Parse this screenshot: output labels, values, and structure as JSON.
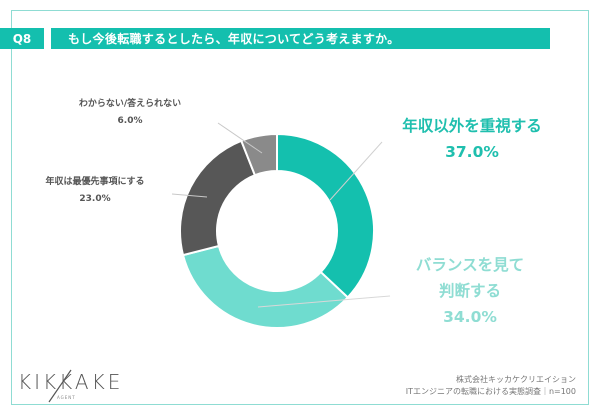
{
  "header": {
    "question_no": "Q8",
    "question": "もし今後転職するとしたら、年収についてどう考えますか。"
  },
  "chart_data": {
    "type": "pie",
    "variant": "donut",
    "title": "もし今後転職するとしたら、年収についてどう考えますか。",
    "categories": [
      "年収以外を重視する",
      "バランスを見て判断する",
      "年収は最優先事項にする",
      "わからない/答えられない"
    ],
    "values": [
      37.0,
      34.0,
      23.0,
      6.0
    ],
    "unit": "%",
    "colors": [
      "#14c0ae",
      "#6fdccf",
      "#575757",
      "#8a8a8a"
    ],
    "start_angle": "top, clockwise",
    "legend": "callout labels"
  },
  "labels": {
    "s1_name": "年収以外を重視する",
    "s1_value": "37.0%",
    "s2_name_line1": "バランスを見て",
    "s2_name_line2": "判断する",
    "s2_value": "34.0%",
    "s3_name": "年収は最優先事項にする",
    "s3_value": "23.0%",
    "s4_name": "わからない/答えられない",
    "s4_value": "6.0%"
  },
  "footer": {
    "logo": "KIKKAKE",
    "logo_sub": "AGENT",
    "company": "株式会社キッカケクリエイション",
    "survey": "ITエンジニアの転職における実態調査｜n=100"
  }
}
